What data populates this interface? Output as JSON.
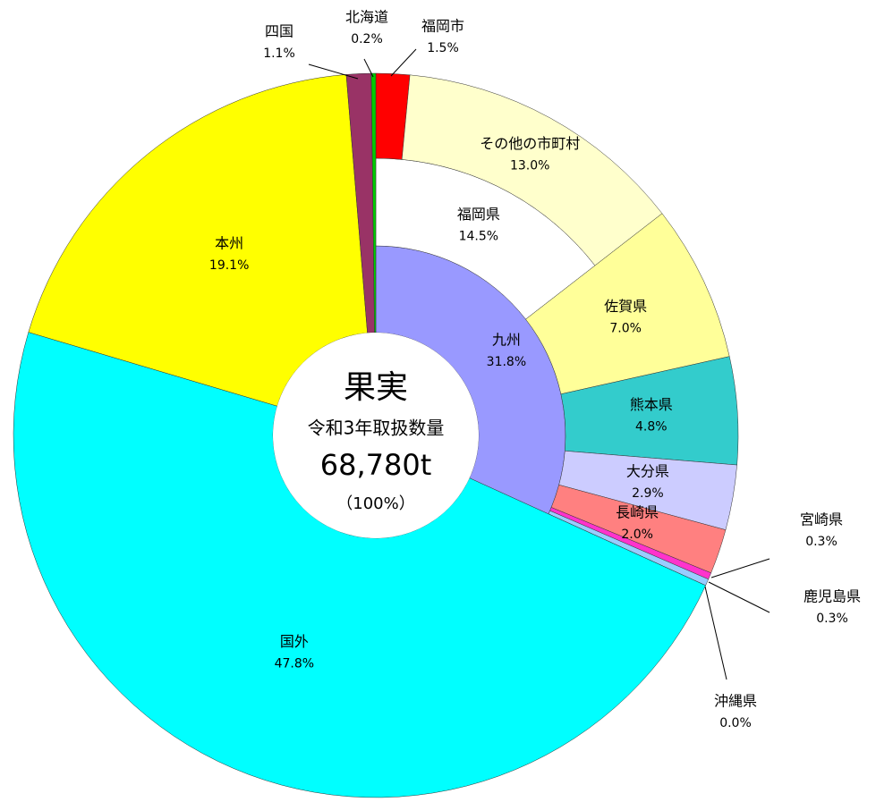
{
  "chart_data": {
    "type": "sunburst",
    "center": {
      "title": "果実",
      "subtitle": "令和3年取扱数量",
      "total": "68,780t",
      "share": "（100%）"
    },
    "segments": [
      {
        "name": "九州",
        "value": 31.8,
        "value_label": "31.8%",
        "color": "#9999ff",
        "children": [
          {
            "name": "福岡県",
            "value": 14.5,
            "value_label": "14.5%",
            "color": "#ffffff",
            "children": [
              {
                "name": "福岡市",
                "value": 1.5,
                "value_label": "1.5%",
                "color": "#ff0000"
              },
              {
                "name": "その他の市町村",
                "value": 13.0,
                "value_label": "13.0%",
                "color": "#ffffcc"
              }
            ]
          },
          {
            "name": "佐賀県",
            "value": 7.0,
            "value_label": "7.0%",
            "color": "#ffff99"
          },
          {
            "name": "熊本県",
            "value": 4.8,
            "value_label": "4.8%",
            "color": "#33cccc"
          },
          {
            "name": "大分県",
            "value": 2.9,
            "value_label": "2.9%",
            "color": "#ccccff"
          },
          {
            "name": "長崎県",
            "value": 2.0,
            "value_label": "2.0%",
            "color": "#ff8080"
          },
          {
            "name": "宮崎県",
            "value": 0.3,
            "value_label": "0.3%",
            "color": "#ff33cc"
          },
          {
            "name": "鹿児島県",
            "value": 0.3,
            "value_label": "0.3%",
            "color": "#99ccff"
          },
          {
            "name": "沖縄県",
            "value": 0.0,
            "value_label": "0.0%",
            "color": "#c0c0c0"
          }
        ]
      },
      {
        "name": "国外",
        "value": 47.8,
        "value_label": "47.8%",
        "color": "#00ffff"
      },
      {
        "name": "本州",
        "value": 19.1,
        "value_label": "19.1%",
        "color": "#ffff00"
      },
      {
        "name": "四国",
        "value": 1.1,
        "value_label": "1.1%",
        "color": "#993366"
      },
      {
        "name": "北海道",
        "value": 0.2,
        "value_label": "0.2%",
        "color": "#00cc00"
      }
    ]
  }
}
